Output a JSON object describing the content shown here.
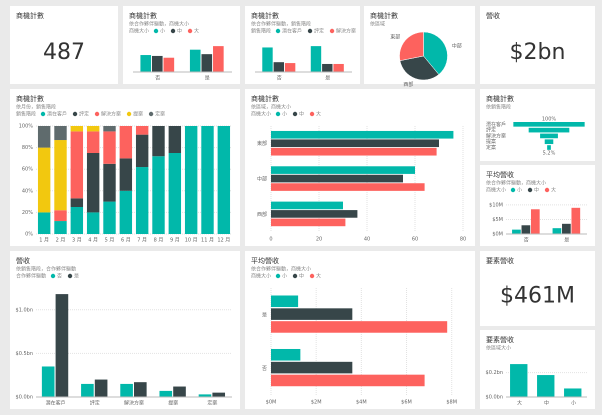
{
  "chart_data": [
    {
      "type": "card",
      "title": "商機計數",
      "value": "487"
    },
    {
      "type": "bar",
      "title": "商機計數",
      "subtitle": "依合作夥伴驅動，商機大小",
      "legend_title": "商機大小",
      "categories": [
        "否",
        "是"
      ],
      "series": [
        {
          "name": "小",
          "color": "#01b8aa",
          "values": [
            38,
            50
          ]
        },
        {
          "name": "中",
          "color": "#374649",
          "values": [
            36,
            40
          ]
        },
        {
          "name": "大",
          "color": "#fd625e",
          "values": [
            32,
            58
          ]
        }
      ],
      "ylim": [
        0,
        65
      ]
    },
    {
      "type": "bar",
      "title": "商機計數",
      "subtitle": "依合作夥伴驅動，銷售階段",
      "legend_title": "銷售階段",
      "categories": [
        "否",
        "是"
      ],
      "series": [
        {
          "name": "潛在客戶",
          "color": "#01b8aa",
          "values": [
            55,
            58
          ]
        },
        {
          "name": "評定",
          "color": "#374649",
          "values": [
            22,
            18
          ]
        },
        {
          "name": "解決方案",
          "color": "#fd625e",
          "values": [
            20,
            18
          ]
        }
      ],
      "ylim": [
        0,
        65
      ]
    },
    {
      "type": "pie",
      "title": "商機計數",
      "subtitle": "依區域",
      "categories": [
        "中部",
        "西部",
        "東部"
      ],
      "values": [
        190,
        160,
        137
      ],
      "colors": [
        "#01b8aa",
        "#374649",
        "#fd625e"
      ]
    },
    {
      "type": "card",
      "title": "營收",
      "value": "$2bn"
    },
    {
      "type": "bar100",
      "title": "商機計數",
      "subtitle": "依月份，銷售階段",
      "legend_title": "銷售階段",
      "categories": [
        "1 月",
        "2 月",
        "3 月",
        "4 月",
        "5 月",
        "6 月",
        "7 月",
        "8 月",
        "9 月",
        "10 月",
        "11 月",
        "12 月"
      ],
      "series": [
        {
          "name": "潛在客戶",
          "color": "#01b8aa",
          "values": [
            20,
            12,
            25,
            20,
            30,
            40,
            62,
            72,
            75,
            100,
            100,
            100
          ]
        },
        {
          "name": "評定",
          "color": "#374649",
          "values": [
            0,
            0,
            8,
            55,
            35,
            30,
            30,
            28,
            25,
            0,
            0,
            0
          ]
        },
        {
          "name": "解決方案",
          "color": "#fd625e",
          "values": [
            0,
            10,
            62,
            20,
            30,
            30,
            8,
            0,
            0,
            0,
            0,
            0
          ]
        },
        {
          "name": "提案",
          "color": "#f2c80f",
          "values": [
            60,
            65,
            5,
            5,
            0,
            0,
            0,
            0,
            0,
            0,
            0,
            0
          ]
        },
        {
          "name": "定案",
          "color": "#5f6b6d",
          "values": [
            20,
            13,
            0,
            0,
            5,
            0,
            0,
            0,
            0,
            0,
            0,
            0
          ]
        }
      ],
      "ylim": [
        0,
        100
      ],
      "yticks": [
        {
          "value": 0,
          "label": "0%"
        },
        {
          "value": 20,
          "label": "20%"
        },
        {
          "value": 40,
          "label": "40%"
        },
        {
          "value": 60,
          "label": "60%"
        },
        {
          "value": 80,
          "label": "80%"
        },
        {
          "value": 100,
          "label": "100%"
        }
      ]
    },
    {
      "type": "hbar",
      "title": "商機計數",
      "subtitle": "依區域，商機大小",
      "legend_title": "商機大小",
      "categories": [
        "東部",
        "中部",
        "西部"
      ],
      "series": [
        {
          "name": "小",
          "color": "#01b8aa",
          "values": [
            76,
            60,
            30
          ]
        },
        {
          "name": "中",
          "color": "#374649",
          "values": [
            70,
            55,
            36
          ]
        },
        {
          "name": "大",
          "color": "#fd625e",
          "values": [
            69,
            64,
            31
          ]
        }
      ],
      "xlim": [
        0,
        80
      ],
      "xticks": [
        0,
        20,
        40,
        60,
        80
      ]
    },
    {
      "type": "funnel",
      "title": "商機計數",
      "subtitle": "依銷售階段",
      "categories": [
        "潛在客戶",
        "評定",
        "解決方案",
        "提案",
        "定案"
      ],
      "values": [
        100,
        57,
        25,
        12,
        5.2
      ],
      "value_labels": [
        "100%",
        null,
        null,
        null,
        "5.2%"
      ],
      "color": "#01b8aa"
    },
    {
      "type": "bar",
      "title": "平均營收",
      "subtitle": "依合作夥伴驅動，商機大小",
      "legend_title": "商機大小",
      "categories": [
        "否",
        "是"
      ],
      "series": [
        {
          "name": "小",
          "color": "#01b8aa",
          "values": [
            1.5,
            2
          ]
        },
        {
          "name": "中",
          "color": "#374649",
          "values": [
            3,
            3.5
          ]
        },
        {
          "name": "大",
          "color": "#fd625e",
          "values": [
            8.5,
            9
          ]
        }
      ],
      "ylim": [
        0,
        11
      ],
      "yticks": [
        {
          "value": 0,
          "label": "$0M"
        },
        {
          "value": 5,
          "label": "$5M"
        },
        {
          "value": 10,
          "label": "$10M"
        }
      ]
    },
    {
      "type": "bar",
      "title": "營收",
      "subtitle": "依銷售階段，合作夥伴驅動",
      "legend_title": "合作夥伴驅動",
      "categories": [
        "潛在客戶",
        "評定",
        "解決方案",
        "提案",
        "定案"
      ],
      "series": [
        {
          "name": "否",
          "color": "#01b8aa",
          "values": [
            0.35,
            0.15,
            0.15,
            0.07,
            0.03
          ]
        },
        {
          "name": "是",
          "color": "#374649",
          "values": [
            1.18,
            0.2,
            0.17,
            0.12,
            0.05
          ]
        }
      ],
      "ylim": [
        0,
        1.25
      ],
      "yticks": [
        {
          "value": 0,
          "label": "$0.0bn"
        },
        {
          "value": 0.5,
          "label": "$0.5bn"
        },
        {
          "value": 1,
          "label": "$1.0bn"
        }
      ]
    },
    {
      "type": "hbar",
      "title": "平均營收",
      "subtitle": "依合作夥伴驅動，商機大小",
      "legend_title": "商機大小",
      "categories": [
        "是",
        "否"
      ],
      "series": [
        {
          "name": "小",
          "color": "#01b8aa",
          "values": [
            1.2,
            1.3
          ]
        },
        {
          "name": "中",
          "color": "#374649",
          "values": [
            3.6,
            3.6
          ]
        },
        {
          "name": "大",
          "color": "#fd625e",
          "values": [
            7.8,
            6.8
          ]
        }
      ],
      "xlim": [
        0,
        8.5
      ],
      "xticks": [
        {
          "value": 0,
          "label": "$0M"
        },
        {
          "value": 2,
          "label": "$2M"
        },
        {
          "value": 4,
          "label": "$4M"
        },
        {
          "value": 6,
          "label": "$6M"
        },
        {
          "value": 8,
          "label": "$8M"
        }
      ]
    },
    {
      "type": "card",
      "title": "要素營收",
      "value": "$461M"
    },
    {
      "type": "bar",
      "title": "要素營收",
      "subtitle": "依區域大小",
      "categories": [
        "大",
        "中",
        "小"
      ],
      "values": [
        0.27,
        0.18,
        0.07
      ],
      "color": "#01b8aa",
      "ylim": [
        0,
        0.32
      ],
      "yticks": [
        {
          "value": 0,
          "label": "$0.0bn"
        },
        {
          "value": 0.2,
          "label": "$0.2bn"
        }
      ]
    }
  ]
}
